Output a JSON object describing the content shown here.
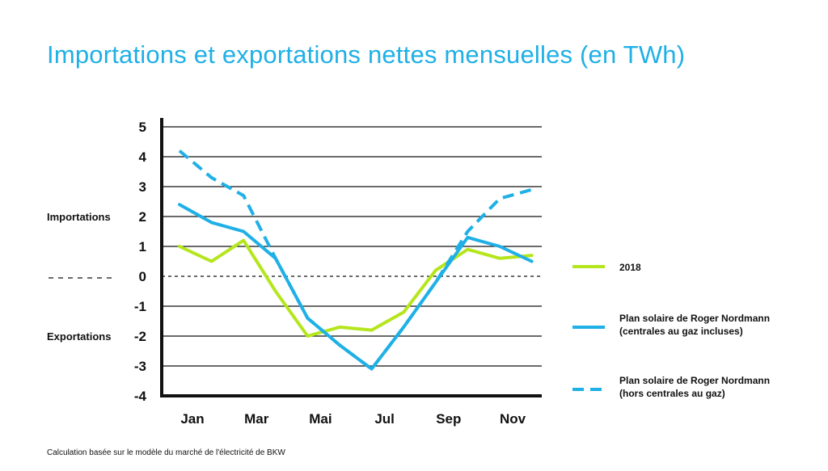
{
  "title": "Importations et exportations nettes mensuelles (en TWh)",
  "footnote": "Calculation basée sur le modèle du marché de l'électricité de BKW",
  "side_labels": {
    "imports": "Importations",
    "exports": "Exportations"
  },
  "colors": {
    "green": "#b5e61d",
    "blue": "#1fb0e6",
    "axis": "#111111"
  },
  "chart_data": {
    "type": "line",
    "title": "Importations et exportations nettes mensuelles (en TWh)",
    "x": [
      1,
      2,
      3,
      4,
      5,
      6,
      7,
      8,
      9,
      10,
      11,
      12
    ],
    "x_tick_labels": [
      "Jan",
      "Mar",
      "Mai",
      "Jul",
      "Sep",
      "Nov"
    ],
    "x_tick_positions": [
      1,
      3,
      5,
      7,
      9,
      11
    ],
    "y_ticks": [
      5,
      4,
      3,
      2,
      1,
      0,
      -1,
      -2,
      -3,
      -4
    ],
    "ylim": [
      -4,
      5
    ],
    "grid": true,
    "legend_position": "right",
    "series": [
      {
        "name": "2018",
        "color": "#b5e61d",
        "style": "solid",
        "values": [
          1.0,
          0.5,
          1.2,
          -0.5,
          -2.0,
          -1.7,
          -1.8,
          -1.2,
          0.2,
          0.9,
          0.6,
          0.7
        ]
      },
      {
        "name": "Plan solaire de Roger Nordmann (centrales au gaz incluses)",
        "name_lines": [
          "Plan solaire de Roger Nordmann",
          "(centrales au gaz incluses)"
        ],
        "color": "#1fb0e6",
        "style": "solid",
        "values": [
          2.4,
          1.8,
          1.5,
          0.6,
          -1.4,
          -2.3,
          -3.1,
          -1.7,
          -0.2,
          1.3,
          1.0,
          0.5
        ]
      },
      {
        "name": "Plan solaire de Roger Nordmann (hors centrales au gaz)",
        "name_lines": [
          "Plan solaire de Roger Nordmann",
          "(hors centrales au gaz)"
        ],
        "color": "#1fb0e6",
        "style": "dashed",
        "values": [
          4.2,
          3.3,
          2.7,
          0.6,
          -1.4,
          -2.3,
          -3.1,
          -1.7,
          -0.2,
          1.5,
          2.6,
          2.9
        ]
      }
    ]
  }
}
